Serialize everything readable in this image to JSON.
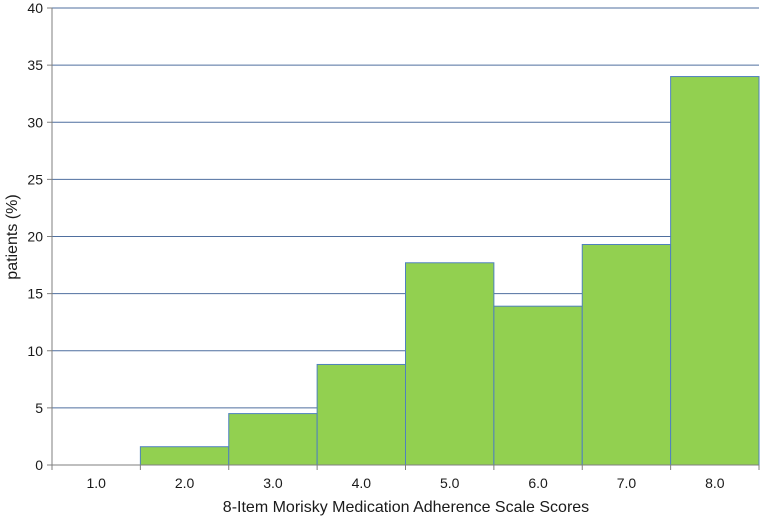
{
  "chart_data": {
    "type": "bar",
    "title": "",
    "xlabel": "8-Item Morisky Medication Adherence Scale Scores",
    "ylabel": "patients (%)",
    "categories": [
      "1.0",
      "2.0",
      "3.0",
      "4.0",
      "5.0",
      "6.0",
      "7.0",
      "8.0"
    ],
    "values": [
      0,
      1.6,
      4.5,
      8.8,
      17.7,
      13.9,
      19.3,
      34.0
    ],
    "ylim": [
      0,
      40
    ],
    "yticks": [
      "0",
      "5",
      "10",
      "15",
      "20",
      "25",
      "30",
      "35",
      "40"
    ],
    "grid": true,
    "legend": "none",
    "colors": {
      "bar_fill": "#92d050",
      "bar_edge": "#4f81bd",
      "grid": "#4f6f9f",
      "axis": "#7f7f7f"
    }
  }
}
